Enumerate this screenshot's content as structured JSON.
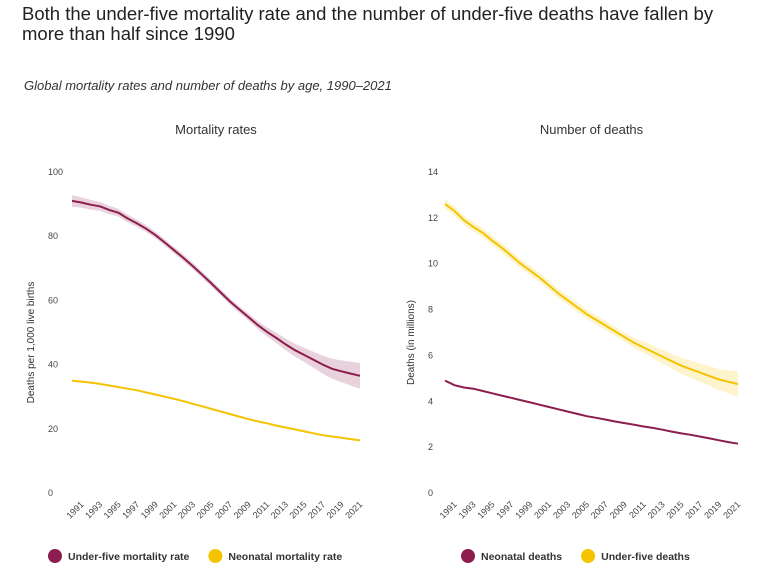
{
  "title": "Both the under-five mortality rate and the number of under-five deaths have fallen by more than half since 1990",
  "subtitle": "Global mortality rates and number of deaths by age, 1990–2021",
  "chart_data": [
    {
      "type": "line",
      "title": "Mortality rates",
      "y_label": "Deaths per 1,000 live births",
      "x": [
        1990,
        1991,
        1992,
        1993,
        1994,
        1995,
        1996,
        1997,
        1998,
        1999,
        2000,
        2001,
        2002,
        2003,
        2004,
        2005,
        2006,
        2007,
        2008,
        2009,
        2010,
        2011,
        2012,
        2013,
        2014,
        2015,
        2016,
        2017,
        2018,
        2019,
        2020,
        2021
      ],
      "xlim": [
        1990,
        2021
      ],
      "xticks": [
        1991,
        1993,
        1995,
        1997,
        1999,
        2001,
        2003,
        2005,
        2007,
        2009,
        2011,
        2013,
        2015,
        2017,
        2019,
        2021
      ],
      "ylim": [
        0,
        100
      ],
      "yticks": [
        0,
        20,
        40,
        60,
        80,
        100
      ],
      "series": [
        {
          "name": "Under-five mortality rate",
          "color": "#8c1d4e",
          "values": [
            91,
            90.5,
            89.8,
            89.3,
            88.2,
            87.3,
            85.5,
            84,
            82.3,
            80.3,
            78,
            75.6,
            73.2,
            70.7,
            68,
            65.3,
            62.5,
            59.7,
            57.2,
            54.8,
            52.3,
            50.2,
            48.3,
            46.3,
            44.5,
            43,
            41.5,
            40,
            38.7,
            37.9,
            37.2,
            36.5
          ],
          "upper": [
            92.8,
            92.1,
            91.3,
            90.7,
            89.5,
            88.5,
            86.7,
            85.1,
            83.4,
            81.3,
            79,
            76.6,
            74.2,
            71.7,
            69,
            66.3,
            63.5,
            60.7,
            58.2,
            55.9,
            53.5,
            51.6,
            49.9,
            48.1,
            46.5,
            45.2,
            44,
            42.8,
            41.8,
            41.3,
            40.9,
            40.5
          ],
          "lower": [
            89.2,
            88.9,
            88.3,
            87.9,
            86.9,
            86.1,
            84.3,
            82.9,
            81.2,
            79.3,
            77,
            74.6,
            72.2,
            69.7,
            67,
            64.3,
            61.5,
            58.7,
            56.2,
            53.7,
            51.1,
            48.8,
            46.7,
            44.5,
            42.5,
            40.8,
            39,
            37.2,
            35.6,
            34.5,
            33.5,
            32.5
          ]
        },
        {
          "name": "Neonatal mortality rate",
          "color": "#f5c300",
          "values": [
            35,
            34.7,
            34.4,
            34,
            33.5,
            33,
            32.5,
            32,
            31.3,
            30.7,
            30,
            29.3,
            28.6,
            27.8,
            27,
            26.2,
            25.4,
            24.6,
            23.8,
            23,
            22.3,
            21.7,
            21,
            20.4,
            19.8,
            19.2,
            18.6,
            18,
            17.6,
            17.2,
            16.8,
            16.4
          ]
        }
      ]
    },
    {
      "type": "line",
      "title": "Number of deaths",
      "y_label": "Deaths (in millions)",
      "x": [
        1990,
        1991,
        1992,
        1993,
        1994,
        1995,
        1996,
        1997,
        1998,
        1999,
        2000,
        2001,
        2002,
        2003,
        2004,
        2005,
        2006,
        2007,
        2008,
        2009,
        2010,
        2011,
        2012,
        2013,
        2014,
        2015,
        2016,
        2017,
        2018,
        2019,
        2020,
        2021
      ],
      "xlim": [
        1990,
        2021
      ],
      "xticks": [
        1991,
        1993,
        1995,
        1997,
        1999,
        2001,
        2003,
        2005,
        2007,
        2009,
        2011,
        2013,
        2015,
        2017,
        2019,
        2021
      ],
      "ylim": [
        0,
        14
      ],
      "yticks": [
        0,
        2,
        4,
        6,
        8,
        10,
        12,
        14
      ],
      "series": [
        {
          "name": "Neonatal deaths",
          "color": "#8c1d4e",
          "values": [
            4.9,
            4.7,
            4.6,
            4.55,
            4.45,
            4.35,
            4.25,
            4.15,
            4.05,
            3.95,
            3.85,
            3.75,
            3.65,
            3.55,
            3.45,
            3.35,
            3.28,
            3.2,
            3.12,
            3.05,
            2.98,
            2.9,
            2.84,
            2.76,
            2.68,
            2.6,
            2.54,
            2.46,
            2.38,
            2.3,
            2.22,
            2.15
          ]
        },
        {
          "name": "Under-five deaths",
          "color": "#f5c300",
          "values": [
            12.6,
            12.3,
            11.9,
            11.6,
            11.35,
            11.0,
            10.7,
            10.35,
            10.0,
            9.7,
            9.4,
            9.05,
            8.7,
            8.4,
            8.1,
            7.8,
            7.55,
            7.3,
            7.05,
            6.8,
            6.55,
            6.35,
            6.15,
            5.95,
            5.75,
            5.55,
            5.4,
            5.25,
            5.1,
            4.95,
            4.85,
            4.75
          ],
          "upper": [
            12.8,
            12.5,
            12.1,
            11.8,
            11.55,
            11.2,
            10.9,
            10.55,
            10.2,
            9.9,
            9.6,
            9.25,
            8.9,
            8.6,
            8.3,
            8.0,
            7.75,
            7.5,
            7.25,
            7.0,
            6.77,
            6.6,
            6.43,
            6.25,
            6.07,
            5.9,
            5.78,
            5.65,
            5.53,
            5.41,
            5.35,
            5.3
          ],
          "lower": [
            12.4,
            12.1,
            11.7,
            11.4,
            11.15,
            10.8,
            10.5,
            10.15,
            9.8,
            9.5,
            9.2,
            8.85,
            8.5,
            8.2,
            7.9,
            7.6,
            7.35,
            7.1,
            6.85,
            6.6,
            6.33,
            6.1,
            5.87,
            5.65,
            5.43,
            5.2,
            5.02,
            4.85,
            4.67,
            4.49,
            4.35,
            4.2
          ]
        }
      ]
    }
  ]
}
